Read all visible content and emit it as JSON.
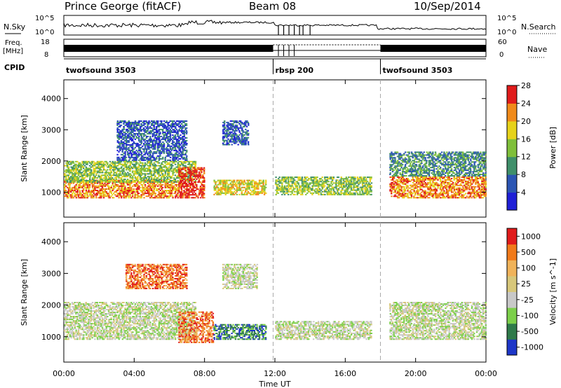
{
  "header": {
    "station": "Prince George (fitACF)",
    "beam": "Beam 08",
    "date": "10/Sep/2014"
  },
  "top_panels": {
    "nsky_label": "N.Sky",
    "nsky_ticks": [
      "10^5",
      "10^0"
    ],
    "nsearch_label": "N.Search",
    "nsearch_ticks": [
      "10^5",
      "10^0"
    ],
    "freq_label": "Freq.",
    "freq_unit": "[MHz]",
    "freq_ticks": [
      "18",
      "8"
    ],
    "nave_label": "Nave",
    "nave_ticks": [
      "60",
      "0"
    ],
    "cpid_label": "CPID",
    "cpid_segments": [
      {
        "name": "twofsound 3503",
        "start_h": 0,
        "end_h": 11.9
      },
      {
        "name": "rbsp 200",
        "start_h": 11.9,
        "end_h": 18.0
      },
      {
        "name": "twofsound 3503",
        "start_h": 18.0,
        "end_h": 24
      }
    ]
  },
  "chart_data": [
    {
      "type": "heatmap",
      "name": "power",
      "ylabel": "Slant Range [km]",
      "xlabel": "Time UT",
      "xlim": [
        0,
        24
      ],
      "ylim": [
        200,
        4600
      ],
      "x_ticks": [
        "00:00",
        "04:00",
        "08:00",
        "12:00",
        "16:00",
        "20:00",
        "00:00"
      ],
      "y_ticks": [
        1000,
        2000,
        3000,
        4000
      ],
      "colorbar_label": "Power [dB]",
      "colorbar_ticks": [
        "4",
        "8",
        "12",
        "16",
        "20",
        "24",
        "28"
      ],
      "colorbar_colors": [
        "#1f1fd6",
        "#2b55b3",
        "#3f8f6a",
        "#7fbf3a",
        "#e6d21a",
        "#f08a1a",
        "#e01b1b"
      ],
      "regions": [
        {
          "t0": 0.0,
          "t1": 6.5,
          "r0": 800,
          "r1": 1400,
          "level": 5
        },
        {
          "t0": 0.0,
          "t1": 7.5,
          "r0": 1300,
          "r1": 2000,
          "level": 3
        },
        {
          "t0": 6.5,
          "t1": 8.0,
          "r0": 800,
          "r1": 1800,
          "level": 6
        },
        {
          "t0": 3.0,
          "t1": 7.0,
          "r0": 2000,
          "r1": 3300,
          "level": 1
        },
        {
          "t0": 8.5,
          "t1": 11.5,
          "r0": 900,
          "r1": 1400,
          "level": 4
        },
        {
          "t0": 9.0,
          "t1": 10.5,
          "r0": 2500,
          "r1": 3300,
          "level": 1
        },
        {
          "t0": 12.0,
          "t1": 17.5,
          "r0": 900,
          "r1": 1500,
          "level": 3
        },
        {
          "t0": 18.5,
          "t1": 24.0,
          "r0": 800,
          "r1": 1500,
          "level": 5
        },
        {
          "t0": 18.5,
          "t1": 24.0,
          "r0": 1500,
          "r1": 2300,
          "level": 2
        }
      ]
    },
    {
      "type": "heatmap",
      "name": "velocity",
      "ylabel": "Slant Range [km]",
      "xlabel": "Time UT",
      "xlim": [
        0,
        24
      ],
      "ylim": [
        200,
        4600
      ],
      "x_ticks": [
        "00:00",
        "04:00",
        "08:00",
        "12:00",
        "16:00",
        "20:00",
        "00:00"
      ],
      "y_ticks": [
        1000,
        2000,
        3000,
        4000
      ],
      "colorbar_label": "Velocity [m s^-1]",
      "colorbar_ticks": [
        "1000",
        "500",
        "100",
        "25",
        "-25",
        "-100",
        "-500",
        "-1000"
      ],
      "colorbar_colors": [
        "#1d36c8",
        "#2f7a4a",
        "#7ccf4a",
        "#c8c8c8",
        "#d7c77a",
        "#f0b35a",
        "#f07a1a",
        "#e01b1b"
      ],
      "regions": [
        {
          "t0": 0.0,
          "t1": 7.5,
          "r0": 900,
          "r1": 2100,
          "level": 3
        },
        {
          "t0": 3.5,
          "t1": 7.0,
          "r0": 2500,
          "r1": 3300,
          "level": 6
        },
        {
          "t0": 6.5,
          "t1": 8.5,
          "r0": 800,
          "r1": 1800,
          "level": 6
        },
        {
          "t0": 8.5,
          "t1": 11.5,
          "r0": 900,
          "r1": 1400,
          "level": 1
        },
        {
          "t0": 9.0,
          "t1": 11.0,
          "r0": 2500,
          "r1": 3300,
          "level": 3
        },
        {
          "t0": 12.0,
          "t1": 17.5,
          "r0": 900,
          "r1": 1500,
          "level": 3
        },
        {
          "t0": 18.5,
          "t1": 24.0,
          "r0": 900,
          "r1": 2100,
          "level": 3
        }
      ]
    }
  ]
}
